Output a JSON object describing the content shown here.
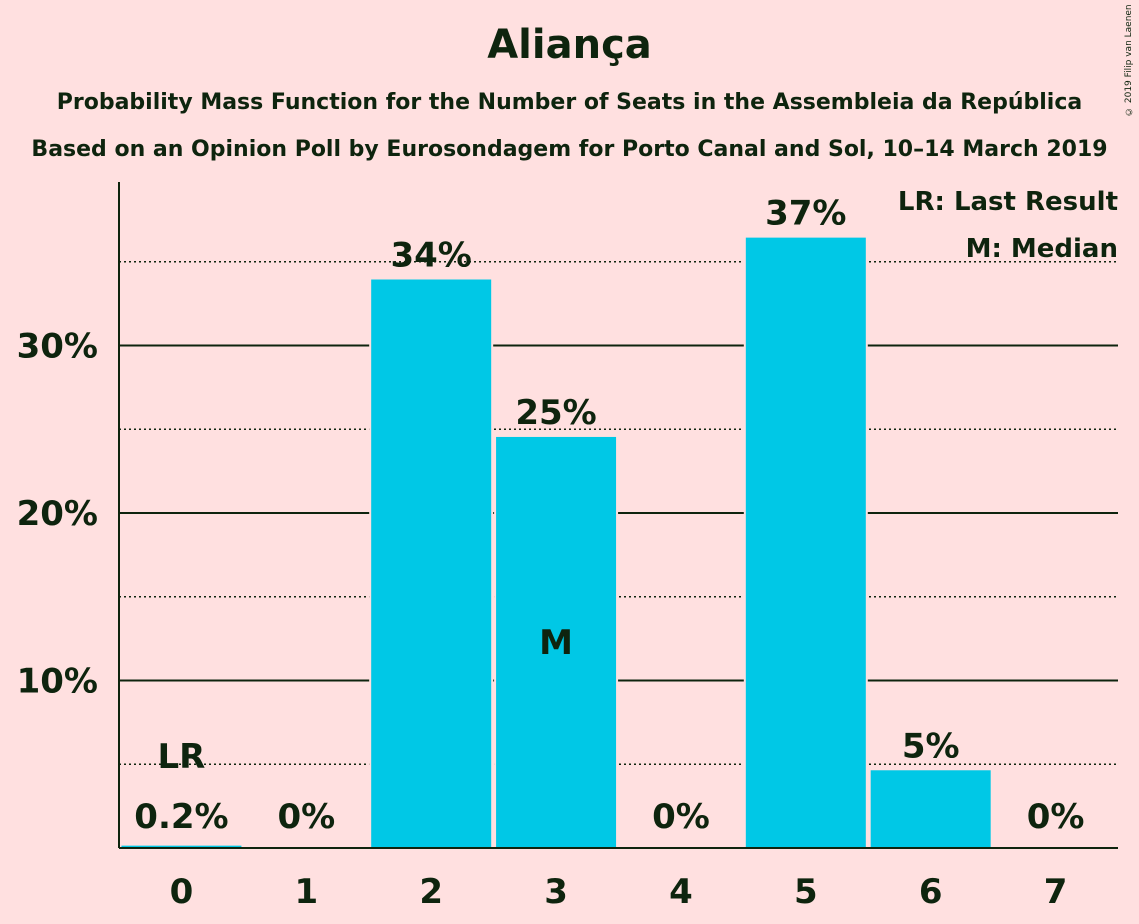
{
  "title": "Aliança",
  "subtitle1": "Probability Mass Function for the Number of Seats in the Assembleia da República",
  "subtitle2": "Based on an Opinion Poll by Eurosondagem for Porto Canal and Sol, 10–14 March 2019",
  "copyright": "© 2019 Filip van Laenen",
  "legend": {
    "last_result": "LR: Last Result",
    "median": "M: Median"
  },
  "markers": {
    "last_result": "LR",
    "median": "M"
  },
  "colors": {
    "background": "#FFE0E0",
    "bar": "#00C8E6",
    "text": "#0E240E"
  },
  "chart_data": {
    "type": "bar",
    "categories": [
      "0",
      "1",
      "2",
      "3",
      "4",
      "5",
      "6",
      "7"
    ],
    "values": [
      0.2,
      0,
      34,
      24.6,
      0,
      36.5,
      4.7,
      0
    ],
    "value_labels": [
      "0.2%",
      "0%",
      "34%",
      "25%",
      "0%",
      "37%",
      "5%",
      "0%"
    ],
    "y_ticks": [
      10,
      20,
      30
    ],
    "y_tick_labels": [
      "10%",
      "20%",
      "30%"
    ],
    "ylim": [
      0,
      39.7
    ],
    "minor_gridlines": [
      5,
      15,
      25,
      35
    ],
    "last_result_seat": "0",
    "median_seat": "3",
    "grid": true,
    "legend_position": "top-right"
  }
}
